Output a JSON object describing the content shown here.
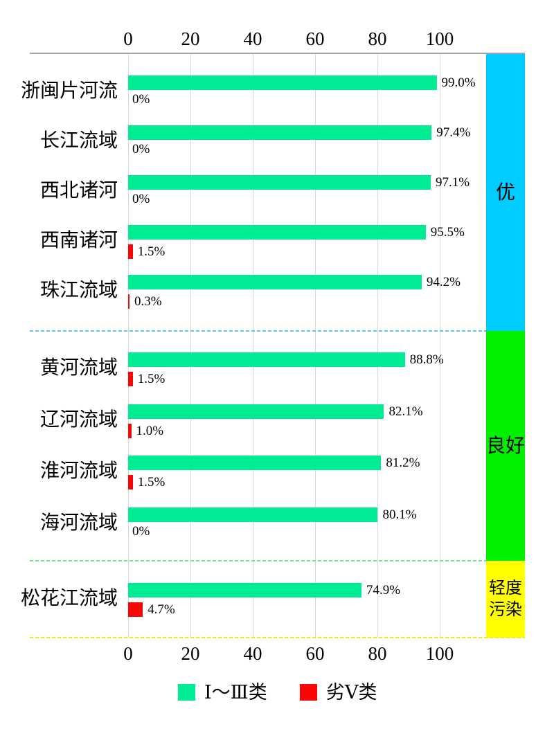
{
  "chart_data": {
    "type": "bar",
    "orientation": "horizontal",
    "categories": [
      "浙闽片河流",
      "长江流域",
      "西北诸河",
      "西南诸河",
      "珠江流域",
      "黄河流域",
      "辽河流域",
      "淮河流域",
      "海河流域",
      "松花江流域"
    ],
    "series": [
      {
        "name": "Ⅰ～Ⅲ类",
        "color": "#00ec92",
        "values": [
          99.0,
          97.4,
          97.1,
          95.5,
          94.2,
          88.8,
          82.1,
          81.2,
          80.1,
          74.9
        ],
        "labels": [
          "99.0%",
          "97.4%",
          "97.1%",
          "95.5%",
          "94.2%",
          "88.8%",
          "82.1%",
          "81.2%",
          "80.1%",
          "74.9%"
        ]
      },
      {
        "name": "劣Ⅴ类",
        "color": "#fb0606",
        "values": [
          0,
          0,
          0,
          1.5,
          0.3,
          1.5,
          1.0,
          1.5,
          0,
          4.7
        ],
        "labels": [
          "0%",
          "0%",
          "0%",
          "1.5%",
          "0.3%",
          "1.5%",
          "1.0%",
          "1.5%",
          "0%",
          "4.7%"
        ]
      }
    ],
    "x_ticks": [
      0,
      20,
      40,
      60,
      80,
      100
    ],
    "xlim": [
      0,
      115
    ],
    "grid": true,
    "groups": [
      {
        "label": "优",
        "rows": [
          0,
          4
        ],
        "band_color": "#00ccff",
        "separator_color": "#55c9ec"
      },
      {
        "label": "良好",
        "rows": [
          5,
          8
        ],
        "band_color": "#00f000",
        "separator_color": "#6fe87f"
      },
      {
        "label": "轻度污染",
        "rows": [
          9,
          9
        ],
        "band_color": "#ffff00",
        "separator_color": "#eeea28"
      }
    ],
    "legend_position": "bottom"
  },
  "colors": {
    "gridline": "#d8d8d8",
    "axis": "#a6a6a6",
    "background": "#ffffff"
  }
}
